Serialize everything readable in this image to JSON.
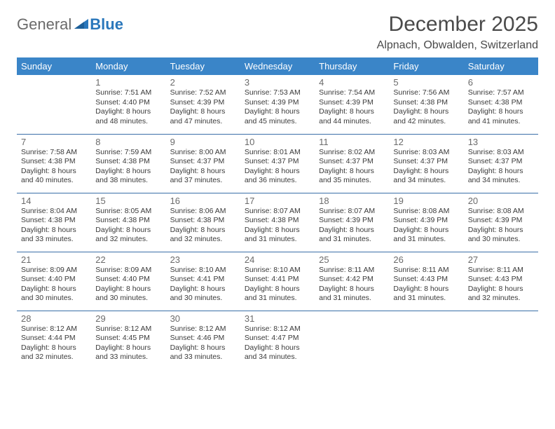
{
  "logo": {
    "word1": "General",
    "word2": "Blue"
  },
  "title": "December 2025",
  "location": "Alpnach, Obwalden, Switzerland",
  "colors": {
    "header_bg": "#3a85c8",
    "header_text": "#ffffff",
    "row_divider": "#3a6fa8",
    "logo_gray": "#6a6a6a",
    "logo_blue": "#2a77bb",
    "text": "#333333",
    "daynum": "#6b6b6b",
    "background": "#ffffff"
  },
  "typography": {
    "title_fontsize": 30,
    "location_fontsize": 16,
    "dayheader_fontsize": 13,
    "daynum_fontsize": 13,
    "body_fontsize": 10.5,
    "font_family": "Arial"
  },
  "day_headers": [
    "Sunday",
    "Monday",
    "Tuesday",
    "Wednesday",
    "Thursday",
    "Friday",
    "Saturday"
  ],
  "weeks": [
    [
      null,
      {
        "n": "1",
        "sr": "Sunrise: 7:51 AM",
        "ss": "Sunset: 4:40 PM",
        "d1": "Daylight: 8 hours",
        "d2": "and 48 minutes."
      },
      {
        "n": "2",
        "sr": "Sunrise: 7:52 AM",
        "ss": "Sunset: 4:39 PM",
        "d1": "Daylight: 8 hours",
        "d2": "and 47 minutes."
      },
      {
        "n": "3",
        "sr": "Sunrise: 7:53 AM",
        "ss": "Sunset: 4:39 PM",
        "d1": "Daylight: 8 hours",
        "d2": "and 45 minutes."
      },
      {
        "n": "4",
        "sr": "Sunrise: 7:54 AM",
        "ss": "Sunset: 4:39 PM",
        "d1": "Daylight: 8 hours",
        "d2": "and 44 minutes."
      },
      {
        "n": "5",
        "sr": "Sunrise: 7:56 AM",
        "ss": "Sunset: 4:38 PM",
        "d1": "Daylight: 8 hours",
        "d2": "and 42 minutes."
      },
      {
        "n": "6",
        "sr": "Sunrise: 7:57 AM",
        "ss": "Sunset: 4:38 PM",
        "d1": "Daylight: 8 hours",
        "d2": "and 41 minutes."
      }
    ],
    [
      {
        "n": "7",
        "sr": "Sunrise: 7:58 AM",
        "ss": "Sunset: 4:38 PM",
        "d1": "Daylight: 8 hours",
        "d2": "and 40 minutes."
      },
      {
        "n": "8",
        "sr": "Sunrise: 7:59 AM",
        "ss": "Sunset: 4:38 PM",
        "d1": "Daylight: 8 hours",
        "d2": "and 38 minutes."
      },
      {
        "n": "9",
        "sr": "Sunrise: 8:00 AM",
        "ss": "Sunset: 4:37 PM",
        "d1": "Daylight: 8 hours",
        "d2": "and 37 minutes."
      },
      {
        "n": "10",
        "sr": "Sunrise: 8:01 AM",
        "ss": "Sunset: 4:37 PM",
        "d1": "Daylight: 8 hours",
        "d2": "and 36 minutes."
      },
      {
        "n": "11",
        "sr": "Sunrise: 8:02 AM",
        "ss": "Sunset: 4:37 PM",
        "d1": "Daylight: 8 hours",
        "d2": "and 35 minutes."
      },
      {
        "n": "12",
        "sr": "Sunrise: 8:03 AM",
        "ss": "Sunset: 4:37 PM",
        "d1": "Daylight: 8 hours",
        "d2": "and 34 minutes."
      },
      {
        "n": "13",
        "sr": "Sunrise: 8:03 AM",
        "ss": "Sunset: 4:37 PM",
        "d1": "Daylight: 8 hours",
        "d2": "and 34 minutes."
      }
    ],
    [
      {
        "n": "14",
        "sr": "Sunrise: 8:04 AM",
        "ss": "Sunset: 4:38 PM",
        "d1": "Daylight: 8 hours",
        "d2": "and 33 minutes."
      },
      {
        "n": "15",
        "sr": "Sunrise: 8:05 AM",
        "ss": "Sunset: 4:38 PM",
        "d1": "Daylight: 8 hours",
        "d2": "and 32 minutes."
      },
      {
        "n": "16",
        "sr": "Sunrise: 8:06 AM",
        "ss": "Sunset: 4:38 PM",
        "d1": "Daylight: 8 hours",
        "d2": "and 32 minutes."
      },
      {
        "n": "17",
        "sr": "Sunrise: 8:07 AM",
        "ss": "Sunset: 4:38 PM",
        "d1": "Daylight: 8 hours",
        "d2": "and 31 minutes."
      },
      {
        "n": "18",
        "sr": "Sunrise: 8:07 AM",
        "ss": "Sunset: 4:39 PM",
        "d1": "Daylight: 8 hours",
        "d2": "and 31 minutes."
      },
      {
        "n": "19",
        "sr": "Sunrise: 8:08 AM",
        "ss": "Sunset: 4:39 PM",
        "d1": "Daylight: 8 hours",
        "d2": "and 31 minutes."
      },
      {
        "n": "20",
        "sr": "Sunrise: 8:08 AM",
        "ss": "Sunset: 4:39 PM",
        "d1": "Daylight: 8 hours",
        "d2": "and 30 minutes."
      }
    ],
    [
      {
        "n": "21",
        "sr": "Sunrise: 8:09 AM",
        "ss": "Sunset: 4:40 PM",
        "d1": "Daylight: 8 hours",
        "d2": "and 30 minutes."
      },
      {
        "n": "22",
        "sr": "Sunrise: 8:09 AM",
        "ss": "Sunset: 4:40 PM",
        "d1": "Daylight: 8 hours",
        "d2": "and 30 minutes."
      },
      {
        "n": "23",
        "sr": "Sunrise: 8:10 AM",
        "ss": "Sunset: 4:41 PM",
        "d1": "Daylight: 8 hours",
        "d2": "and 30 minutes."
      },
      {
        "n": "24",
        "sr": "Sunrise: 8:10 AM",
        "ss": "Sunset: 4:41 PM",
        "d1": "Daylight: 8 hours",
        "d2": "and 31 minutes."
      },
      {
        "n": "25",
        "sr": "Sunrise: 8:11 AM",
        "ss": "Sunset: 4:42 PM",
        "d1": "Daylight: 8 hours",
        "d2": "and 31 minutes."
      },
      {
        "n": "26",
        "sr": "Sunrise: 8:11 AM",
        "ss": "Sunset: 4:43 PM",
        "d1": "Daylight: 8 hours",
        "d2": "and 31 minutes."
      },
      {
        "n": "27",
        "sr": "Sunrise: 8:11 AM",
        "ss": "Sunset: 4:43 PM",
        "d1": "Daylight: 8 hours",
        "d2": "and 32 minutes."
      }
    ],
    [
      {
        "n": "28",
        "sr": "Sunrise: 8:12 AM",
        "ss": "Sunset: 4:44 PM",
        "d1": "Daylight: 8 hours",
        "d2": "and 32 minutes."
      },
      {
        "n": "29",
        "sr": "Sunrise: 8:12 AM",
        "ss": "Sunset: 4:45 PM",
        "d1": "Daylight: 8 hours",
        "d2": "and 33 minutes."
      },
      {
        "n": "30",
        "sr": "Sunrise: 8:12 AM",
        "ss": "Sunset: 4:46 PM",
        "d1": "Daylight: 8 hours",
        "d2": "and 33 minutes."
      },
      {
        "n": "31",
        "sr": "Sunrise: 8:12 AM",
        "ss": "Sunset: 4:47 PM",
        "d1": "Daylight: 8 hours",
        "d2": "and 34 minutes."
      },
      null,
      null,
      null
    ]
  ]
}
